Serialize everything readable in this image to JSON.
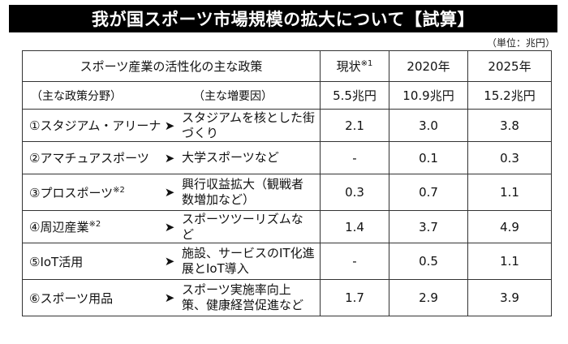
{
  "title": "我が国スポーツ市場規模の拡大について【試算】",
  "unit": "（単位：兆円）",
  "header": {
    "policy": "スポーツ産業の活性化の主な政策",
    "now": "現状",
    "now_note": "※1",
    "y2020": "2020年",
    "y2025": "2025年"
  },
  "subheader": {
    "field": "（主な政策分野）",
    "factor": "（主な増要因）",
    "now_total": "5.5兆円",
    "y2020_total": "10.9兆円",
    "y2025_total": "15.2兆円"
  },
  "arrow_icon": "➤",
  "rows": [
    {
      "field": "①スタジアム・アリーナ",
      "note": "",
      "factor": "スタジアムを核とした街づくり",
      "now": "2.1",
      "y2020": "3.0",
      "y2025": "3.8"
    },
    {
      "field": "②アマチュアスポーツ",
      "note": "",
      "factor": "大学スポーツなど",
      "now": "-",
      "y2020": "0.1",
      "y2025": "0.3"
    },
    {
      "field": "③プロスポーツ",
      "note": "※2",
      "factor": "興行収益拡大（観戦者数増加など）",
      "now": "0.3",
      "y2020": "0.7",
      "y2025": "1.1"
    },
    {
      "field": "④周辺産業",
      "note": "※2",
      "factor": "スポーツツーリズムなど",
      "now": "1.4",
      "y2020": "3.7",
      "y2025": "4.9"
    },
    {
      "field": "⑤IoT活用",
      "note": "",
      "factor": "施設、サービスのIT化進展とIoT導入",
      "now": "-",
      "y2020": "0.5",
      "y2025": "1.1"
    },
    {
      "field": "⑥スポーツ用品",
      "note": "",
      "factor": "スポーツ実施率向上策、健康経営促進など",
      "now": "1.7",
      "y2020": "2.9",
      "y2025": "3.9"
    }
  ]
}
